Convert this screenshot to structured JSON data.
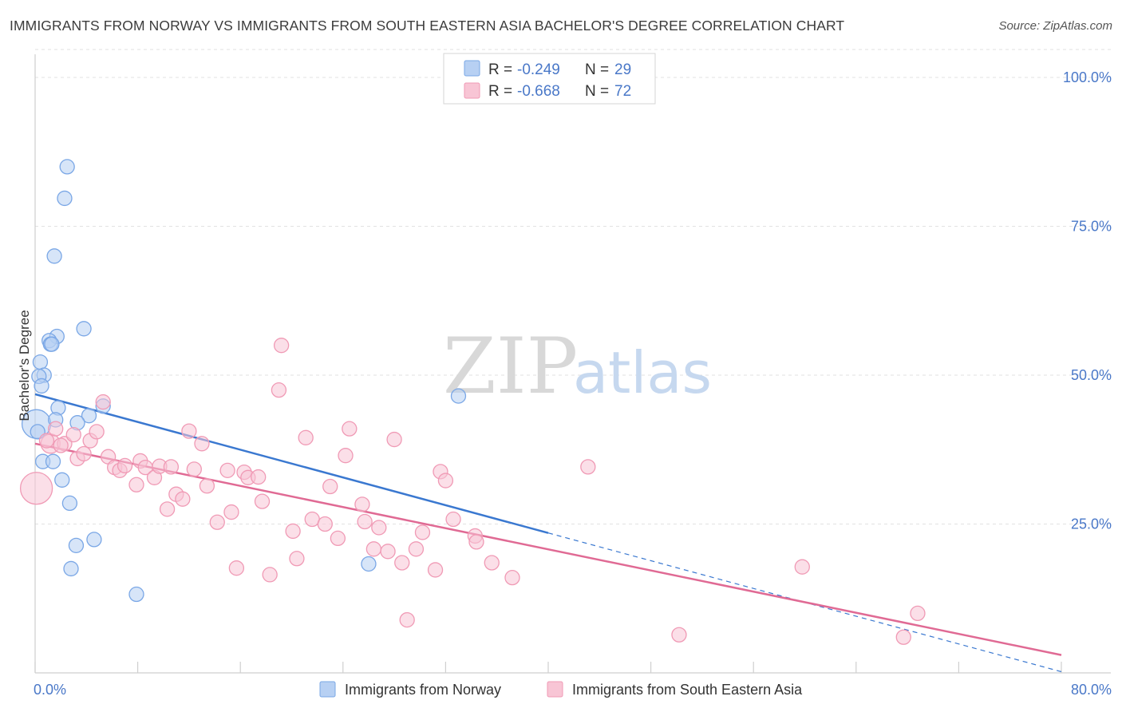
{
  "chart_data": {
    "type": "scatter",
    "title": "IMMIGRANTS FROM NORWAY VS IMMIGRANTS FROM SOUTH EASTERN ASIA BACHELOR'S DEGREE CORRELATION CHART",
    "source": "Source: ZipAtlas.com",
    "ylabel": "Bachelor's Degree",
    "xlim": [
      0,
      80
    ],
    "ylim": [
      0,
      105
    ],
    "y_ticks": [
      {
        "value": 25,
        "label": "25.0%"
      },
      {
        "value": 50,
        "label": "50.0%"
      },
      {
        "value": 75,
        "label": "75.0%"
      },
      {
        "value": 100,
        "label": "100.0%"
      }
    ],
    "x_ticks_labeled": [
      {
        "value": 0,
        "label": "0.0%"
      },
      {
        "value": 80,
        "label": "80.0%"
      }
    ],
    "x_minor_ticks": [
      0,
      8,
      16,
      24,
      32,
      40,
      48,
      56,
      64,
      72,
      80
    ],
    "watermark": {
      "zip": "ZIP",
      "atlas": "atlas"
    },
    "series": [
      {
        "name": "Immigrants from Norway",
        "color": "#7aa7e6",
        "fill": "#b7d0f3",
        "line_color": "#3a78d0",
        "R": "-0.249",
        "N": "29",
        "trend": {
          "x0": 0,
          "y0": 46.8,
          "x1": 40,
          "y1": 23.5,
          "dash_to_x": 80,
          "dash_to_y": 0.2
        },
        "points": [
          [
            2.5,
            85.0,
            9
          ],
          [
            2.3,
            79.7,
            9
          ],
          [
            1.5,
            70.0,
            9
          ],
          [
            3.8,
            57.8,
            9
          ],
          [
            1.7,
            56.5,
            9
          ],
          [
            1.1,
            55.8,
            9
          ],
          [
            1.2,
            55.2,
            9
          ],
          [
            1.3,
            55.2,
            9
          ],
          [
            0.4,
            52.2,
            9
          ],
          [
            0.7,
            50.0,
            9
          ],
          [
            0.3,
            49.8,
            9
          ],
          [
            0.5,
            48.2,
            9
          ],
          [
            5.3,
            44.8,
            9
          ],
          [
            1.8,
            44.5,
            9
          ],
          [
            4.2,
            43.2,
            9
          ],
          [
            0.1,
            41.8,
            18
          ],
          [
            1.6,
            42.5,
            9
          ],
          [
            3.3,
            42.0,
            9
          ],
          [
            0.6,
            35.5,
            9
          ],
          [
            1.4,
            35.5,
            9
          ],
          [
            2.1,
            32.4,
            9
          ],
          [
            2.7,
            28.5,
            9
          ],
          [
            4.6,
            22.4,
            9
          ],
          [
            3.2,
            21.4,
            9
          ],
          [
            2.8,
            17.5,
            9
          ],
          [
            7.9,
            13.2,
            9
          ],
          [
            33.0,
            46.5,
            9
          ],
          [
            26.0,
            18.3,
            9
          ],
          [
            0.2,
            40.5,
            9
          ]
        ]
      },
      {
        "name": "Immigrants from South Eastern Asia",
        "color": "#f09ab5",
        "fill": "#f8c5d5",
        "line_color": "#e06a94",
        "R": "-0.668",
        "N": "72",
        "trend": {
          "x0": 0,
          "y0": 38.5,
          "x1": 80,
          "y1": 3.0
        },
        "points": [
          [
            0.1,
            31.0,
            20
          ],
          [
            1.2,
            38.5,
            12
          ],
          [
            2.3,
            38.5,
            9
          ],
          [
            3.0,
            40.0,
            9
          ],
          [
            1.6,
            41.0,
            9
          ],
          [
            3.3,
            36.0,
            9
          ],
          [
            3.8,
            36.8,
            9
          ],
          [
            4.3,
            39.0,
            9
          ],
          [
            4.8,
            40.5,
            9
          ],
          [
            5.3,
            45.5,
            9
          ],
          [
            5.7,
            36.3,
            9
          ],
          [
            6.2,
            34.5,
            9
          ],
          [
            6.6,
            34.0,
            9
          ],
          [
            7.0,
            34.8,
            9
          ],
          [
            7.9,
            31.6,
            9
          ],
          [
            8.2,
            35.6,
            9
          ],
          [
            8.6,
            34.5,
            9
          ],
          [
            9.3,
            32.8,
            9
          ],
          [
            9.7,
            34.7,
            9
          ],
          [
            10.6,
            34.6,
            9
          ],
          [
            10.3,
            27.5,
            9
          ],
          [
            11.0,
            30.0,
            9
          ],
          [
            11.5,
            29.2,
            9
          ],
          [
            12.4,
            34.2,
            9
          ],
          [
            12.0,
            40.6,
            9
          ],
          [
            13.4,
            31.4,
            9
          ],
          [
            13.0,
            38.5,
            9
          ],
          [
            14.2,
            25.3,
            9
          ],
          [
            15.0,
            34.0,
            9
          ],
          [
            15.3,
            27.0,
            9
          ],
          [
            16.3,
            33.7,
            9
          ],
          [
            16.6,
            32.8,
            9
          ],
          [
            17.4,
            32.9,
            9
          ],
          [
            17.7,
            28.8,
            9
          ],
          [
            15.7,
            17.6,
            9
          ],
          [
            18.3,
            16.5,
            9
          ],
          [
            19.0,
            47.5,
            9
          ],
          [
            19.2,
            55.0,
            9
          ],
          [
            20.1,
            23.8,
            9
          ],
          [
            20.4,
            19.2,
            9
          ],
          [
            21.1,
            39.5,
            9
          ],
          [
            21.6,
            25.8,
            9
          ],
          [
            22.6,
            25.0,
            9
          ],
          [
            23.0,
            31.3,
            9
          ],
          [
            23.6,
            22.6,
            9
          ],
          [
            24.2,
            36.5,
            9
          ],
          [
            24.5,
            41.0,
            9
          ],
          [
            25.5,
            28.3,
            9
          ],
          [
            25.7,
            25.4,
            9
          ],
          [
            26.4,
            20.8,
            9
          ],
          [
            26.8,
            24.4,
            9
          ],
          [
            27.5,
            20.4,
            9
          ],
          [
            28.0,
            39.2,
            9
          ],
          [
            28.6,
            18.5,
            9
          ],
          [
            29.0,
            8.9,
            9
          ],
          [
            29.7,
            20.8,
            9
          ],
          [
            30.2,
            23.6,
            9
          ],
          [
            31.2,
            17.3,
            9
          ],
          [
            31.6,
            33.8,
            9
          ],
          [
            32.0,
            32.3,
            9
          ],
          [
            32.6,
            25.8,
            9
          ],
          [
            34.3,
            23.0,
            9
          ],
          [
            34.4,
            22.0,
            9
          ],
          [
            35.6,
            18.5,
            9
          ],
          [
            37.2,
            16.0,
            9
          ],
          [
            43.1,
            34.6,
            9
          ],
          [
            50.2,
            6.4,
            9
          ],
          [
            59.8,
            17.8,
            9
          ],
          [
            67.7,
            6.0,
            9
          ],
          [
            68.8,
            10.0,
            9
          ],
          [
            0.9,
            39.0,
            9
          ],
          [
            2.0,
            38.2,
            9
          ]
        ]
      }
    ]
  }
}
